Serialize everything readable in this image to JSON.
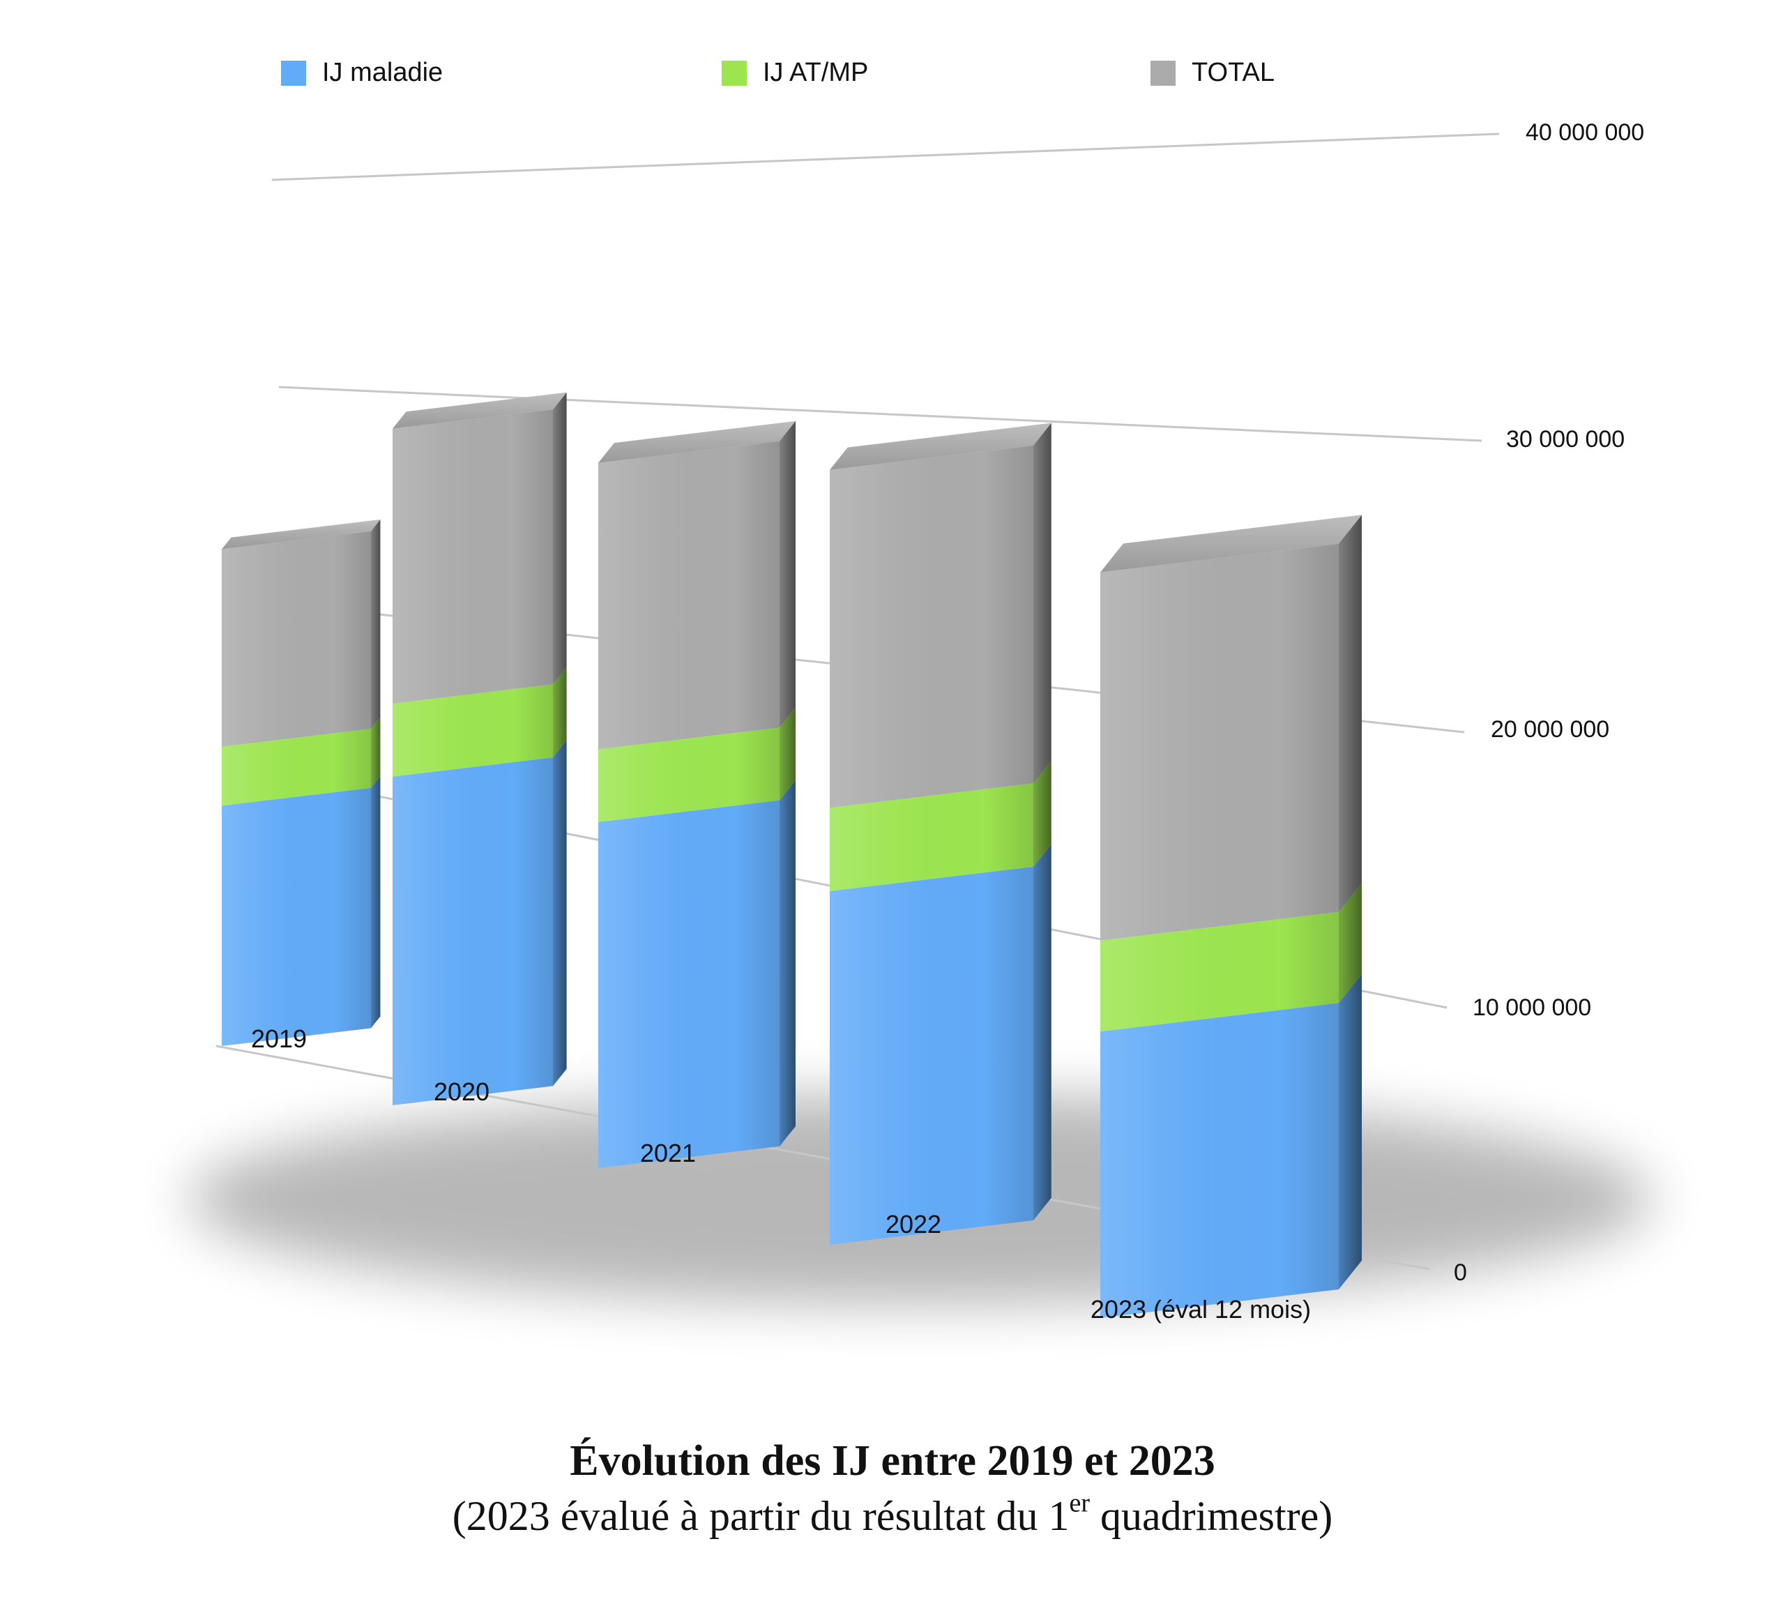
{
  "chart_data": {
    "type": "bar",
    "stacked": true,
    "style": "3d",
    "categories": [
      "2019",
      "2020",
      "2021",
      "2022",
      "2023 (éval 12 mois)"
    ],
    "series": [
      {
        "name": "IJ maladie",
        "color": "#62abf8",
        "values": [
          11800000,
          15300000,
          15700000,
          15700000,
          12600000
        ]
      },
      {
        "name": "IJ AT/MP",
        "color": "#9ce54f",
        "values": [
          2900000,
          3400000,
          3300000,
          3700000,
          4000000
        ]
      },
      {
        "name": "TOTAL",
        "color": "#ababab",
        "values": [
          9700000,
          12800000,
          13000000,
          15000000,
          16200000
        ]
      }
    ],
    "ylim": [
      0,
      40000000
    ],
    "yticks": [
      "0",
      "10 000 000",
      "20 000 000",
      "30 000 000",
      "40 000 000"
    ],
    "grid": true,
    "legend_position": "top",
    "title": "Évolution des IJ entre 2019 et 2023",
    "subtitle": {
      "before": "(2023 évalué à partir du résultat du 1",
      "sup": "er",
      "after": " quadrimestre)"
    }
  }
}
